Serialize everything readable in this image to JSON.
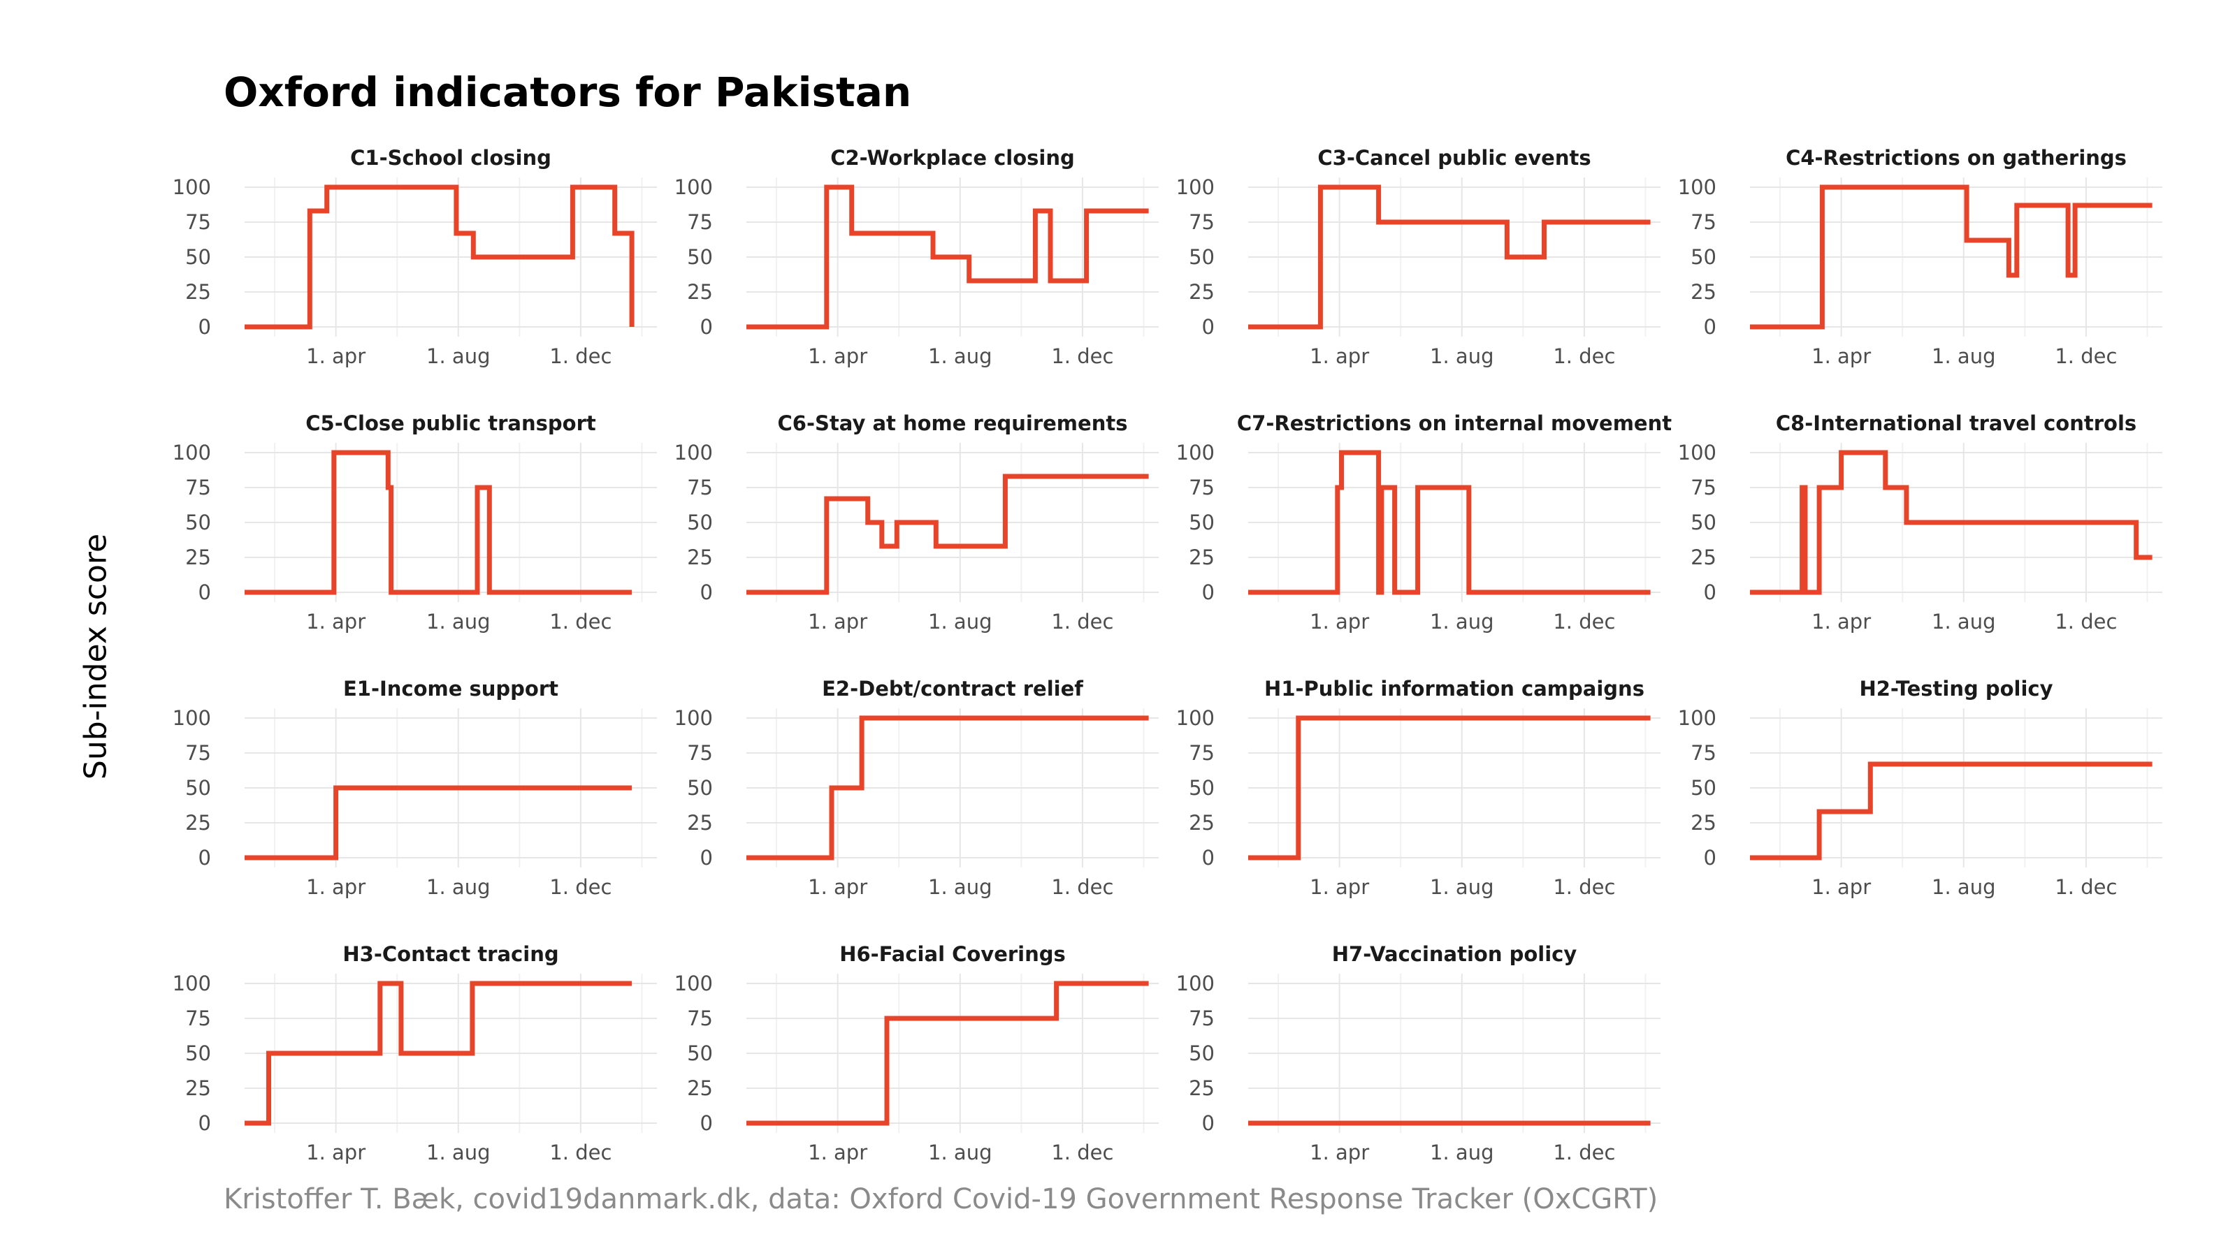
{
  "title": "Oxford indicators for Pakistan",
  "ylabel": "Sub-index score",
  "caption": "Kristoffer T. Bæk, covid19danmark.dk, data: Oxford Covid-19 Government Response Tracker (OxCGRT)",
  "colors": {
    "line": "#e8442a",
    "grid": "#e6e6e6",
    "tick_text": "#4d4d4d"
  },
  "chart_data": {
    "type": "line",
    "shared_axes": {
      "x_ticks": [
        {
          "label": "1. apr",
          "date": "2020-04-01"
        },
        {
          "label": "1. aug",
          "date": "2020-08-01"
        },
        {
          "label": "1. dec",
          "date": "2020-12-01"
        }
      ],
      "xlim": [
        "2020-01-01",
        "2021-02-15"
      ],
      "y_ticks": [
        0,
        25,
        50,
        75,
        100
      ],
      "ylim": [
        0,
        100
      ],
      "grid": true
    },
    "panels": [
      {
        "title": "C1-School closing",
        "points": [
          [
            "2020-01-01",
            0
          ],
          [
            "2020-03-06",
            0
          ],
          [
            "2020-03-06",
            83
          ],
          [
            "2020-03-23",
            83
          ],
          [
            "2020-03-23",
            100
          ],
          [
            "2020-07-30",
            100
          ],
          [
            "2020-07-30",
            67
          ],
          [
            "2020-08-16",
            67
          ],
          [
            "2020-08-16",
            50
          ],
          [
            "2020-11-23",
            50
          ],
          [
            "2020-11-23",
            100
          ],
          [
            "2021-01-04",
            100
          ],
          [
            "2021-01-04",
            67
          ],
          [
            "2021-01-21",
            67
          ],
          [
            "2021-01-21",
            0
          ]
        ]
      },
      {
        "title": "C2-Workplace closing",
        "points": [
          [
            "2020-01-01",
            0
          ],
          [
            "2020-03-21",
            0
          ],
          [
            "2020-03-21",
            100
          ],
          [
            "2020-04-15",
            100
          ],
          [
            "2020-04-15",
            67
          ],
          [
            "2020-07-05",
            67
          ],
          [
            "2020-07-05",
            50
          ],
          [
            "2020-08-10",
            50
          ],
          [
            "2020-08-10",
            33
          ],
          [
            "2020-10-15",
            33
          ],
          [
            "2020-10-15",
            83
          ],
          [
            "2020-10-30",
            83
          ],
          [
            "2020-10-30",
            33
          ],
          [
            "2020-12-05",
            33
          ],
          [
            "2020-12-05",
            83
          ],
          [
            "2021-02-05",
            83
          ]
        ]
      },
      {
        "title": "C3-Cancel public events",
        "points": [
          [
            "2020-01-01",
            0
          ],
          [
            "2020-03-13",
            0
          ],
          [
            "2020-03-13",
            100
          ],
          [
            "2020-05-10",
            100
          ],
          [
            "2020-05-10",
            75
          ],
          [
            "2020-09-15",
            75
          ],
          [
            "2020-09-15",
            50
          ],
          [
            "2020-10-22",
            50
          ],
          [
            "2020-10-22",
            75
          ],
          [
            "2021-02-05",
            75
          ]
        ]
      },
      {
        "title": "C4-Restrictions on gatherings",
        "points": [
          [
            "2020-01-01",
            0
          ],
          [
            "2020-03-13",
            0
          ],
          [
            "2020-03-13",
            100
          ],
          [
            "2020-08-04",
            100
          ],
          [
            "2020-08-04",
            62
          ],
          [
            "2020-09-15",
            62
          ],
          [
            "2020-09-15",
            37
          ],
          [
            "2020-09-23",
            37
          ],
          [
            "2020-09-23",
            87
          ],
          [
            "2020-11-13",
            87
          ],
          [
            "2020-11-13",
            37
          ],
          [
            "2020-11-20",
            37
          ],
          [
            "2020-11-20",
            87
          ],
          [
            "2021-02-05",
            87
          ]
        ]
      },
      {
        "title": "C5-Close public transport",
        "points": [
          [
            "2020-01-01",
            0
          ],
          [
            "2020-03-30",
            0
          ],
          [
            "2020-03-30",
            100
          ],
          [
            "2020-05-23",
            100
          ],
          [
            "2020-05-23",
            75
          ],
          [
            "2020-05-26",
            75
          ],
          [
            "2020-05-26",
            0
          ],
          [
            "2020-08-20",
            0
          ],
          [
            "2020-08-20",
            75
          ],
          [
            "2020-09-01",
            75
          ],
          [
            "2020-09-01",
            0
          ],
          [
            "2021-01-21",
            0
          ]
        ]
      },
      {
        "title": "C6-Stay at home requirements",
        "points": [
          [
            "2020-01-01",
            0
          ],
          [
            "2020-03-21",
            0
          ],
          [
            "2020-03-21",
            67
          ],
          [
            "2020-05-01",
            67
          ],
          [
            "2020-05-01",
            50
          ],
          [
            "2020-05-15",
            50
          ],
          [
            "2020-05-15",
            33
          ],
          [
            "2020-05-30",
            33
          ],
          [
            "2020-05-30",
            50
          ],
          [
            "2020-07-08",
            50
          ],
          [
            "2020-07-08",
            33
          ],
          [
            "2020-09-15",
            33
          ],
          [
            "2020-09-15",
            83
          ],
          [
            "2021-02-05",
            83
          ]
        ]
      },
      {
        "title": "C7-Restrictions on internal movement",
        "points": [
          [
            "2020-01-01",
            0
          ],
          [
            "2020-03-30",
            0
          ],
          [
            "2020-03-30",
            75
          ],
          [
            "2020-04-03",
            75
          ],
          [
            "2020-04-03",
            100
          ],
          [
            "2020-05-10",
            100
          ],
          [
            "2020-05-10",
            0
          ],
          [
            "2020-05-13",
            0
          ],
          [
            "2020-05-13",
            75
          ],
          [
            "2020-05-26",
            75
          ],
          [
            "2020-05-26",
            0
          ],
          [
            "2020-06-18",
            0
          ],
          [
            "2020-06-18",
            75
          ],
          [
            "2020-08-08",
            75
          ],
          [
            "2020-08-08",
            0
          ],
          [
            "2021-02-05",
            0
          ]
        ]
      },
      {
        "title": "C8-International travel controls",
        "points": [
          [
            "2020-01-01",
            0
          ],
          [
            "2020-02-22",
            0
          ],
          [
            "2020-02-22",
            75
          ],
          [
            "2020-02-25",
            75
          ],
          [
            "2020-02-25",
            0
          ],
          [
            "2020-03-10",
            0
          ],
          [
            "2020-03-10",
            75
          ],
          [
            "2020-04-01",
            75
          ],
          [
            "2020-04-01",
            100
          ],
          [
            "2020-05-15",
            100
          ],
          [
            "2020-05-15",
            75
          ],
          [
            "2020-06-05",
            75
          ],
          [
            "2020-06-05",
            50
          ],
          [
            "2021-01-20",
            50
          ],
          [
            "2021-01-20",
            25
          ],
          [
            "2021-02-05",
            25
          ]
        ]
      },
      {
        "title": "E1-Income support",
        "points": [
          [
            "2020-01-01",
            0
          ],
          [
            "2020-04-01",
            0
          ],
          [
            "2020-04-01",
            50
          ],
          [
            "2021-01-21",
            50
          ]
        ]
      },
      {
        "title": "E2-Debt/contract relief",
        "points": [
          [
            "2020-01-01",
            0
          ],
          [
            "2020-03-26",
            0
          ],
          [
            "2020-03-26",
            50
          ],
          [
            "2020-04-25",
            50
          ],
          [
            "2020-04-25",
            100
          ],
          [
            "2021-02-05",
            100
          ]
        ]
      },
      {
        "title": "H1-Public information campaigns",
        "points": [
          [
            "2020-01-01",
            0
          ],
          [
            "2020-02-20",
            0
          ],
          [
            "2020-02-20",
            100
          ],
          [
            "2021-02-05",
            100
          ]
        ]
      },
      {
        "title": "H2-Testing policy",
        "points": [
          [
            "2020-01-01",
            0
          ],
          [
            "2020-03-10",
            0
          ],
          [
            "2020-03-10",
            33
          ],
          [
            "2020-04-30",
            33
          ],
          [
            "2020-04-30",
            67
          ],
          [
            "2021-02-05",
            67
          ]
        ]
      },
      {
        "title": "H3-Contact tracing",
        "points": [
          [
            "2020-01-01",
            0
          ],
          [
            "2020-01-25",
            0
          ],
          [
            "2020-01-25",
            50
          ],
          [
            "2020-05-15",
            50
          ],
          [
            "2020-05-15",
            100
          ],
          [
            "2020-06-05",
            100
          ],
          [
            "2020-06-05",
            50
          ],
          [
            "2020-08-15",
            50
          ],
          [
            "2020-08-15",
            100
          ],
          [
            "2021-01-21",
            100
          ]
        ]
      },
      {
        "title": "H6-Facial Coverings",
        "points": [
          [
            "2020-01-01",
            0
          ],
          [
            "2020-05-20",
            0
          ],
          [
            "2020-05-20",
            75
          ],
          [
            "2020-11-05",
            75
          ],
          [
            "2020-11-05",
            100
          ],
          [
            "2021-02-05",
            100
          ]
        ]
      },
      {
        "title": "H7-Vaccination policy",
        "points": [
          [
            "2020-01-01",
            0
          ],
          [
            "2021-02-05",
            0
          ]
        ]
      }
    ]
  }
}
